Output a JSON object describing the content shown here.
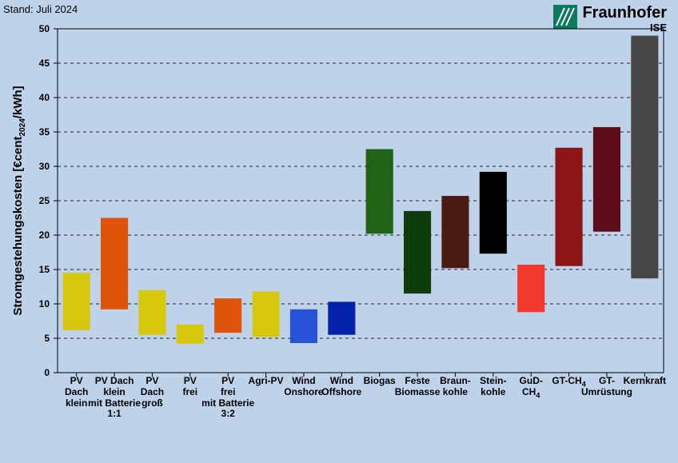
{
  "meta": {
    "stand_label": "Stand: Juli 2024",
    "logo_main": "Fraunhofer",
    "logo_sub": "ISE",
    "logo_color": "#0b7a5d"
  },
  "chart": {
    "type": "floating-bar",
    "ylabel_html": "Stromgestehungskosten [€cent<sub>2024</sub>/kWh]",
    "label_fontsize": 15,
    "ylim": [
      0,
      50
    ],
    "ytick_step": 5,
    "yticks": [
      0,
      5,
      10,
      15,
      20,
      25,
      30,
      35,
      40,
      45,
      50
    ],
    "background_color": "#bed2ea",
    "grid_color": "#222222",
    "grid_dash": "4 4",
    "bar_rel_width": 0.72,
    "categories": [
      {
        "label_html": "PV\nDach\nklein",
        "low": 6.2,
        "high": 14.5,
        "color": "#d7c80e"
      },
      {
        "label_html": "PV Dach\nklein\nmit Batterie\n1:1",
        "low": 9.2,
        "high": 22.5,
        "color": "#e0530a"
      },
      {
        "label_html": "PV\nDach\ngroß",
        "low": 5.5,
        "high": 12.0,
        "color": "#d7c80e"
      },
      {
        "label_html": "PV\nfrei",
        "low": 4.2,
        "high": 7.0,
        "color": "#d7c80e"
      },
      {
        "label_html": "PV\nfrei\nmit Batterie\n3:2",
        "low": 5.8,
        "high": 10.8,
        "color": "#e0530a"
      },
      {
        "label_html": "Agri-PV",
        "low": 5.2,
        "high": 11.8,
        "color": "#d7c80e"
      },
      {
        "label_html": "Wind\nOnshore",
        "low": 4.3,
        "high": 9.2,
        "color": "#2653d8"
      },
      {
        "label_html": "Wind\nOffshore",
        "low": 5.5,
        "high": 10.3,
        "color": "#0422a8"
      },
      {
        "label_html": "Biogas",
        "low": 20.2,
        "high": 32.5,
        "color": "#206316"
      },
      {
        "label_html": "Feste\nBiomasse",
        "low": 11.5,
        "high": 23.5,
        "color": "#0e3b0a"
      },
      {
        "label_html": "Braun-\nkohle",
        "low": 15.2,
        "high": 25.7,
        "color": "#4a1b12"
      },
      {
        "label_html": "Stein-\nkohle",
        "low": 17.3,
        "high": 29.2,
        "color": "#000000"
      },
      {
        "label_html": "GuD-\nCH<sub>4</sub>",
        "low": 8.8,
        "high": 15.7,
        "color": "#f1392d"
      },
      {
        "label_html": "GT-CH<sub>4</sub>",
        "low": 15.5,
        "high": 32.7,
        "color": "#8b1414"
      },
      {
        "label_html": "GT-\nUmrüstung",
        "low": 20.5,
        "high": 35.7,
        "color": "#5c0d19"
      },
      {
        "label_html": "Kernkraft",
        "low": 13.7,
        "high": 49.0,
        "color": "#474747"
      }
    ]
  }
}
